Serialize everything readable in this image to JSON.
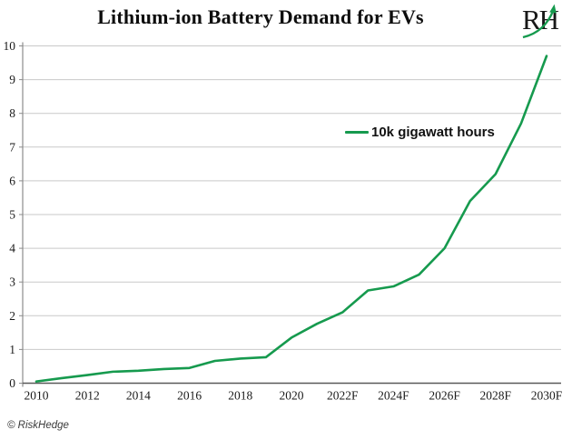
{
  "header": {
    "title": "Lithium-ion Battery Demand for EVs",
    "logo_text": "RH"
  },
  "legend": {
    "label": "10k gigawatt hours"
  },
  "footer": {
    "credit": "© RiskHedge"
  },
  "colors": {
    "line_green": "#169a4e",
    "logo_arrow_green": "#169a4e",
    "grid_gray": "#c9c9c9",
    "y_axis_gray": "#8c8c8c",
    "x_axis_dark": "#595959",
    "label_color": "#1a1a1a"
  },
  "chart_data": {
    "type": "line",
    "title": "Lithium-ion Battery Demand for EVs",
    "xlabel": "",
    "ylabel": "",
    "xlim": [
      2010,
      2030
    ],
    "ylim": [
      0,
      10
    ],
    "y_ticks": [
      0,
      1,
      2,
      3,
      4,
      5,
      6,
      7,
      8,
      9,
      10
    ],
    "x_ticks": [
      2010,
      2012,
      2014,
      2016,
      2018,
      2020,
      2022,
      2024,
      2026,
      2028,
      2030
    ],
    "x_tick_labels": [
      "2010",
      "2012",
      "2014",
      "2016",
      "2018",
      "2020",
      "2022F",
      "2024F",
      "2026F",
      "2028F",
      "2030F"
    ],
    "grid": "horizontal",
    "legend_position": "inside-top-center",
    "series": [
      {
        "name": "10k gigawatt hours",
        "color": "#169a4e",
        "x": [
          2010,
          2011,
          2012,
          2013,
          2014,
          2015,
          2016,
          2017,
          2018,
          2019,
          2020,
          2021,
          2022,
          2023,
          2024,
          2025,
          2026,
          2027,
          2028,
          2029,
          2030
        ],
        "values": [
          0.05,
          0.15,
          0.24,
          0.34,
          0.37,
          0.42,
          0.45,
          0.66,
          0.73,
          0.77,
          1.35,
          1.76,
          2.1,
          2.75,
          2.87,
          3.22,
          4.0,
          5.4,
          6.2,
          7.7,
          9.7
        ]
      }
    ]
  }
}
